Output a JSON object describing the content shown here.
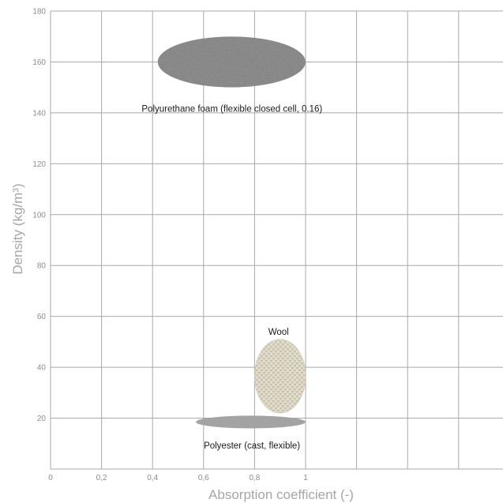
{
  "chart_data": {
    "type": "scatter",
    "xlabel": "Absorption coefficient (-)",
    "ylabel": "Density (kg/m³)",
    "xlim": [
      0,
      1.7
    ],
    "ylim": [
      0,
      180
    ],
    "x_ticks": [
      "0",
      "0,2",
      "0,4",
      "0,6",
      "0,8",
      "1"
    ],
    "x_tick_values": [
      0,
      0.2,
      0.4,
      0.6,
      0.8,
      1.0
    ],
    "x_grid_values": [
      0,
      0.2,
      0.4,
      0.6,
      0.8,
      1.0,
      1.2,
      1.4,
      1.6
    ],
    "y_ticks": [
      "20",
      "40",
      "60",
      "80",
      "100",
      "120",
      "140",
      "160",
      "180"
    ],
    "y_tick_values": [
      20,
      40,
      60,
      80,
      100,
      120,
      140,
      160,
      180
    ],
    "grid": true,
    "regions": [
      {
        "name": "Polyurethane foam (flexible closed cell, 0.16)",
        "x_range": [
          0.42,
          1.0
        ],
        "y_range": [
          150,
          170
        ],
        "color": "#9a9a9a",
        "texture": "speckled-foam"
      },
      {
        "name": "Wool",
        "x_range": [
          0.8,
          1.0
        ],
        "y_range": [
          22,
          51
        ],
        "color": "#d8d2c2",
        "texture": "woven"
      },
      {
        "name": "Polyester (cast, flexible)",
        "x_range": [
          0.57,
          1.0
        ],
        "y_range": [
          16,
          21
        ],
        "color": "#a3a3a3",
        "texture": "flat"
      }
    ]
  }
}
